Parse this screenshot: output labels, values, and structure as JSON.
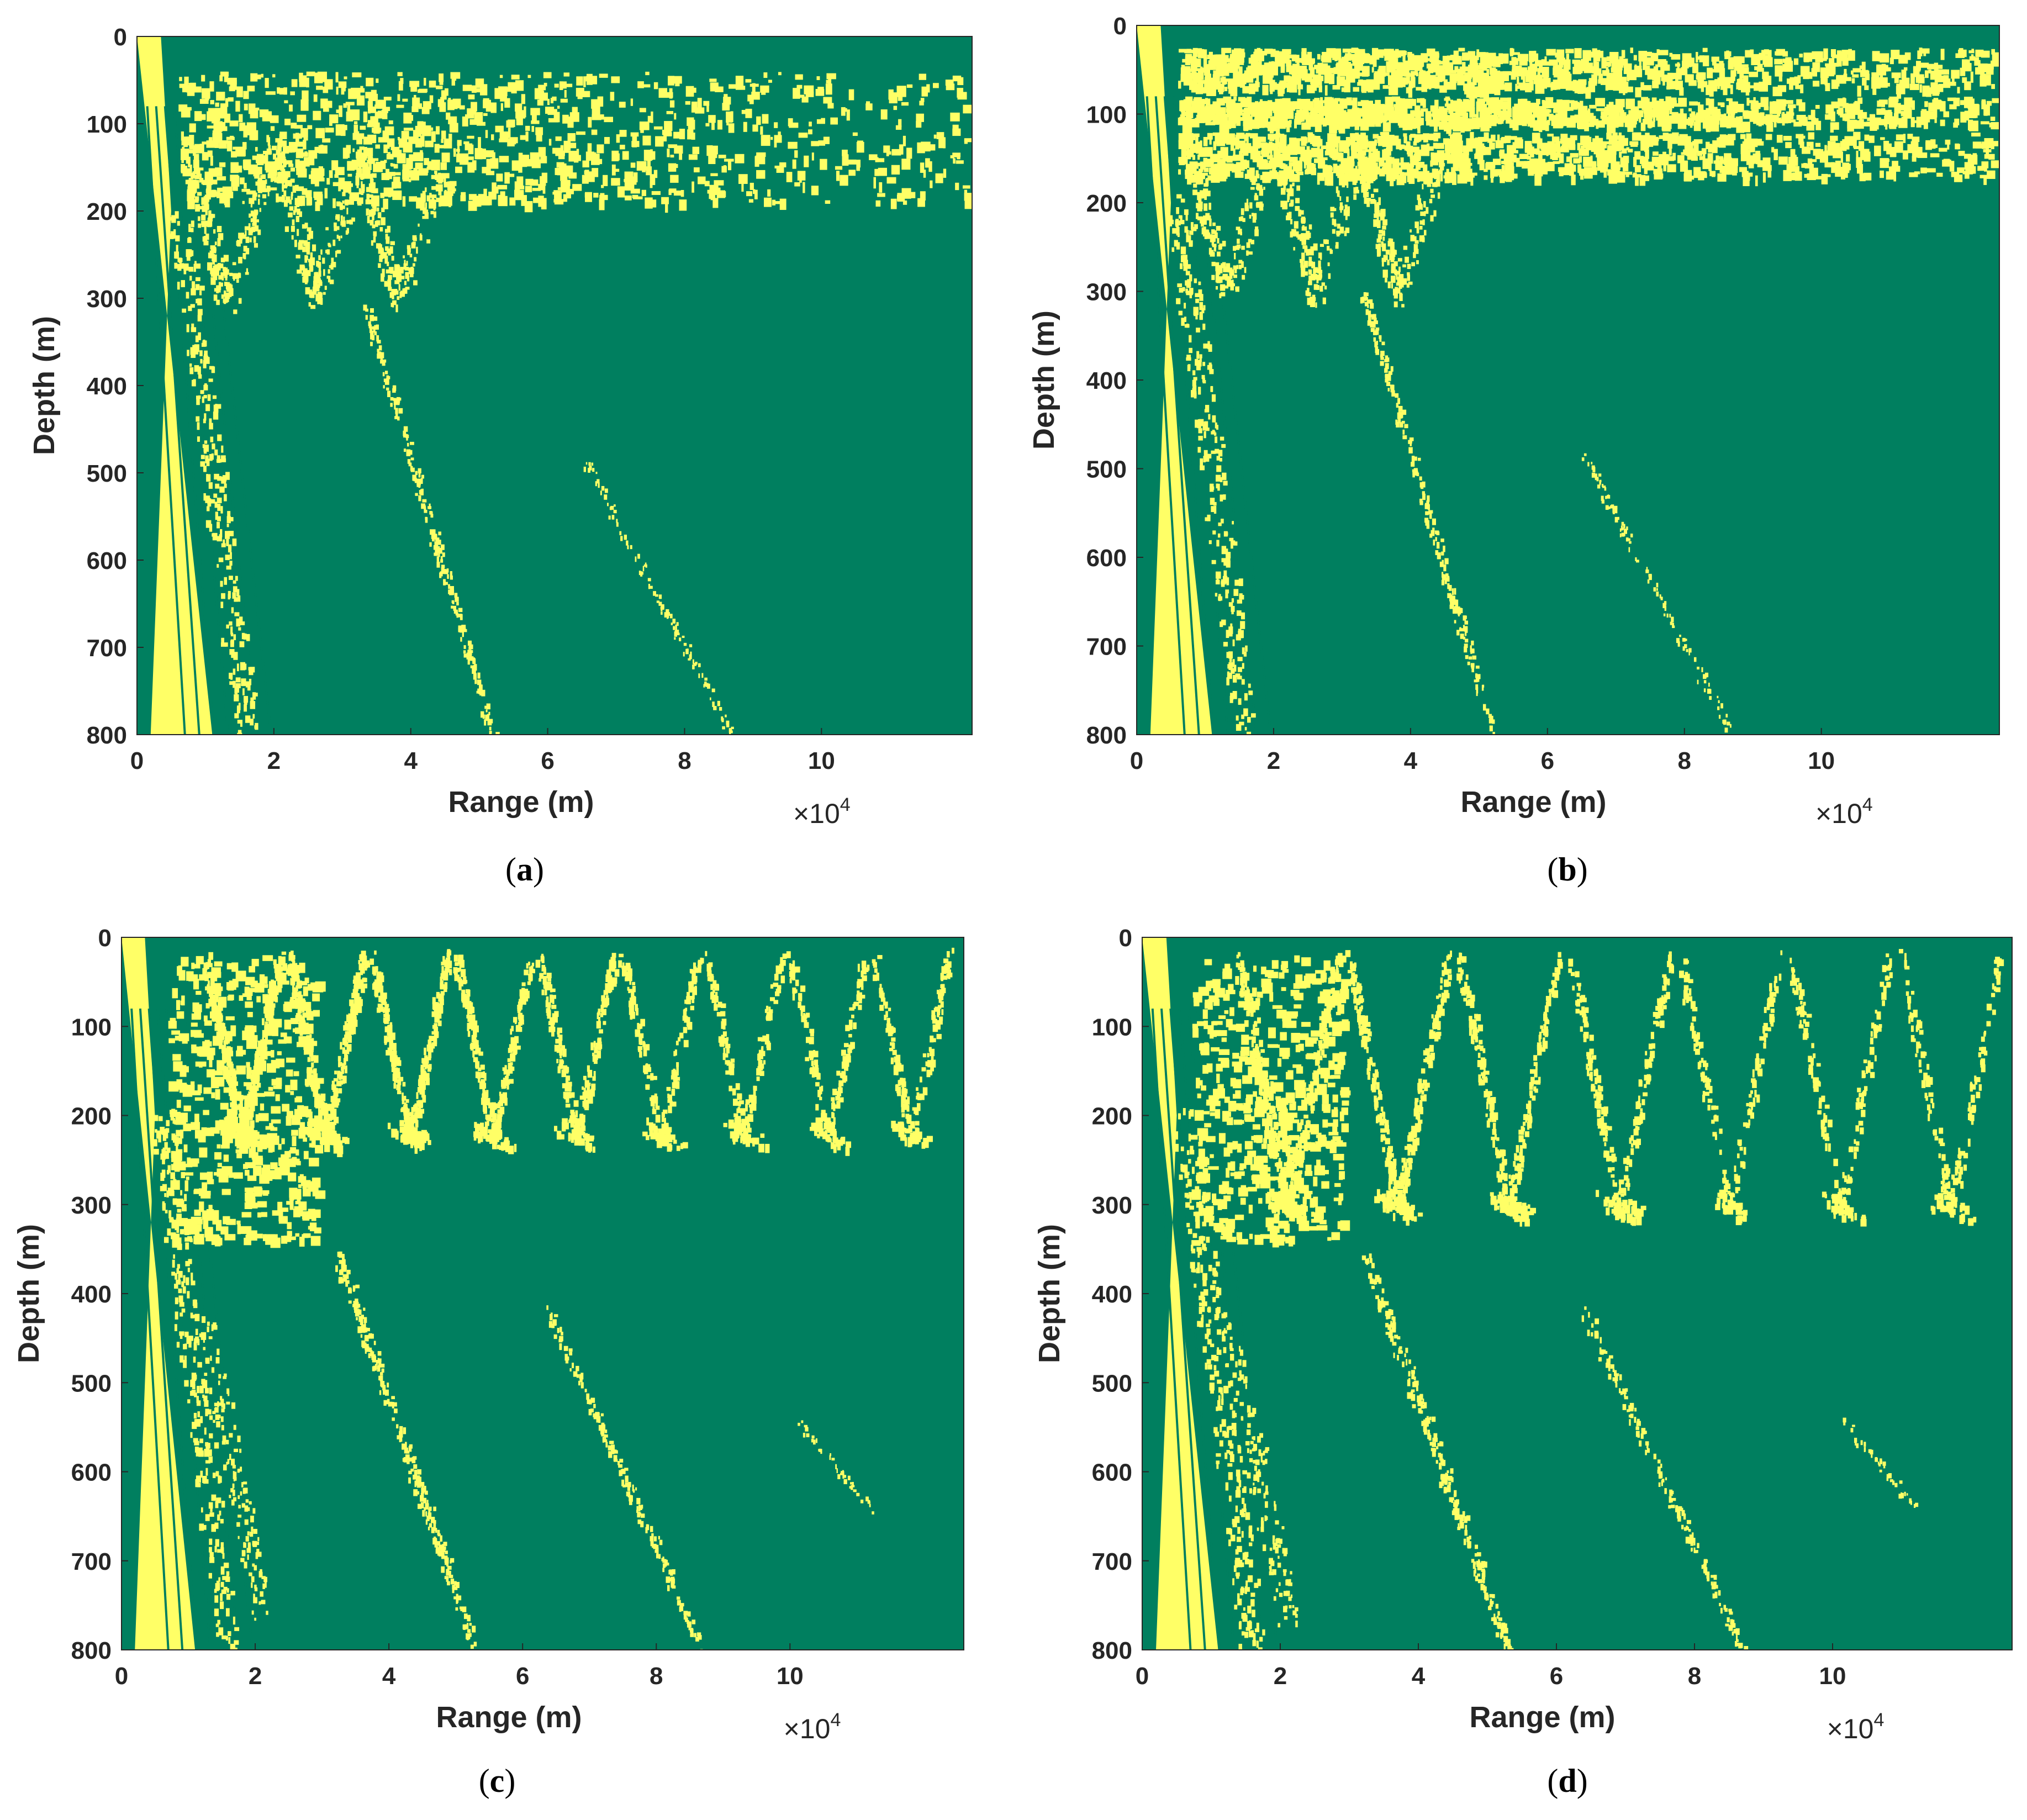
{
  "colors": {
    "background": "#007f5f",
    "pattern": "#ffff66"
  },
  "chart_data": [
    {
      "type": "heatmap",
      "panel": "a",
      "caption_letter": "a",
      "xlabel": "Range (m)",
      "ylabel": "Depth (m)",
      "x_multiplier": "×10",
      "x_multiplier_exp": "4",
      "xticks": [
        0,
        2,
        4,
        6,
        8,
        10
      ],
      "xtick_labels": [
        "0",
        "2",
        "4",
        "6",
        "8",
        "10"
      ],
      "yticks": [
        0,
        100,
        200,
        300,
        400,
        500,
        600,
        700,
        800
      ],
      "ytick_labels": [
        "0",
        "100",
        "200",
        "300",
        "400",
        "500",
        "600",
        "700",
        "800"
      ],
      "xlim": [
        0,
        12.2
      ],
      "ylim": [
        0,
        800
      ],
      "y_reversed": true,
      "colors": [
        "#007f5f",
        "#ffff66"
      ]
    },
    {
      "type": "heatmap",
      "panel": "b",
      "caption_letter": "b",
      "xlabel": "Range (m)",
      "ylabel": "Depth (m)",
      "x_multiplier": "×10",
      "x_multiplier_exp": "4",
      "xticks": [
        0,
        2,
        4,
        6,
        8,
        10
      ],
      "xtick_labels": [
        "0",
        "2",
        "4",
        "6",
        "8",
        "10"
      ],
      "yticks": [
        0,
        100,
        200,
        300,
        400,
        500,
        600,
        700,
        800
      ],
      "ytick_labels": [
        "0",
        "100",
        "200",
        "300",
        "400",
        "500",
        "600",
        "700",
        "800"
      ],
      "xlim": [
        0,
        12.6
      ],
      "ylim": [
        0,
        800
      ],
      "y_reversed": true,
      "colors": [
        "#007f5f",
        "#ffff66"
      ]
    },
    {
      "type": "heatmap",
      "panel": "c",
      "caption_letter": "c",
      "xlabel": "Range (m)",
      "ylabel": "Depth (m)",
      "x_multiplier": "×10",
      "x_multiplier_exp": "4",
      "xticks": [
        0,
        2,
        4,
        6,
        8,
        10
      ],
      "xtick_labels": [
        "0",
        "2",
        "4",
        "6",
        "8",
        "10"
      ],
      "yticks": [
        0,
        100,
        200,
        300,
        400,
        500,
        600,
        700,
        800
      ],
      "ytick_labels": [
        "0",
        "100",
        "200",
        "300",
        "400",
        "500",
        "600",
        "700",
        "800"
      ],
      "xlim": [
        0,
        12.6
      ],
      "ylim": [
        0,
        800
      ],
      "y_reversed": true,
      "colors": [
        "#007f5f",
        "#ffff66"
      ]
    },
    {
      "type": "heatmap",
      "panel": "d",
      "caption_letter": "d",
      "xlabel": "Range (m)",
      "ylabel": "Depth (m)",
      "x_multiplier": "×10",
      "x_multiplier_exp": "4",
      "xticks": [
        0,
        2,
        4,
        6,
        8,
        10
      ],
      "xtick_labels": [
        "0",
        "2",
        "4",
        "6",
        "8",
        "10"
      ],
      "yticks": [
        0,
        100,
        200,
        300,
        400,
        500,
        600,
        700,
        800
      ],
      "ytick_labels": [
        "0",
        "100",
        "200",
        "300",
        "400",
        "500",
        "600",
        "700",
        "800"
      ],
      "xlim": [
        0,
        12.6
      ],
      "ylim": [
        0,
        800
      ],
      "y_reversed": true,
      "colors": [
        "#007f5f",
        "#ffff66"
      ]
    }
  ]
}
